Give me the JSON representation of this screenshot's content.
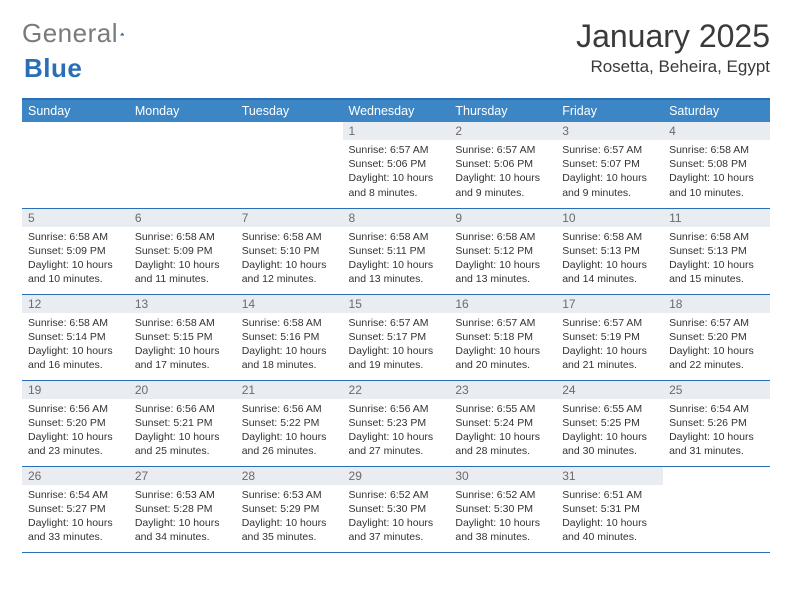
{
  "brand": {
    "part1": "General",
    "part2": "Blue"
  },
  "title": "January 2025",
  "location": "Rosetta, Beheira, Egypt",
  "colors": {
    "header_bg": "#3d86c6",
    "border": "#2a6fb5",
    "daynum_bg": "#e9edf1",
    "text": "#333333",
    "logo_gray": "#7a7a7a"
  },
  "layout": {
    "weeks": 5,
    "cols": 7
  },
  "day_headers": [
    "Sunday",
    "Monday",
    "Tuesday",
    "Wednesday",
    "Thursday",
    "Friday",
    "Saturday"
  ],
  "weeks": [
    [
      null,
      null,
      null,
      {
        "n": "1",
        "sr": "6:57 AM",
        "ss": "5:06 PM",
        "dl": "10 hours and 8 minutes."
      },
      {
        "n": "2",
        "sr": "6:57 AM",
        "ss": "5:06 PM",
        "dl": "10 hours and 9 minutes."
      },
      {
        "n": "3",
        "sr": "6:57 AM",
        "ss": "5:07 PM",
        "dl": "10 hours and 9 minutes."
      },
      {
        "n": "4",
        "sr": "6:58 AM",
        "ss": "5:08 PM",
        "dl": "10 hours and 10 minutes."
      }
    ],
    [
      {
        "n": "5",
        "sr": "6:58 AM",
        "ss": "5:09 PM",
        "dl": "10 hours and 10 minutes."
      },
      {
        "n": "6",
        "sr": "6:58 AM",
        "ss": "5:09 PM",
        "dl": "10 hours and 11 minutes."
      },
      {
        "n": "7",
        "sr": "6:58 AM",
        "ss": "5:10 PM",
        "dl": "10 hours and 12 minutes."
      },
      {
        "n": "8",
        "sr": "6:58 AM",
        "ss": "5:11 PM",
        "dl": "10 hours and 13 minutes."
      },
      {
        "n": "9",
        "sr": "6:58 AM",
        "ss": "5:12 PM",
        "dl": "10 hours and 13 minutes."
      },
      {
        "n": "10",
        "sr": "6:58 AM",
        "ss": "5:13 PM",
        "dl": "10 hours and 14 minutes."
      },
      {
        "n": "11",
        "sr": "6:58 AM",
        "ss": "5:13 PM",
        "dl": "10 hours and 15 minutes."
      }
    ],
    [
      {
        "n": "12",
        "sr": "6:58 AM",
        "ss": "5:14 PM",
        "dl": "10 hours and 16 minutes."
      },
      {
        "n": "13",
        "sr": "6:58 AM",
        "ss": "5:15 PM",
        "dl": "10 hours and 17 minutes."
      },
      {
        "n": "14",
        "sr": "6:58 AM",
        "ss": "5:16 PM",
        "dl": "10 hours and 18 minutes."
      },
      {
        "n": "15",
        "sr": "6:57 AM",
        "ss": "5:17 PM",
        "dl": "10 hours and 19 minutes."
      },
      {
        "n": "16",
        "sr": "6:57 AM",
        "ss": "5:18 PM",
        "dl": "10 hours and 20 minutes."
      },
      {
        "n": "17",
        "sr": "6:57 AM",
        "ss": "5:19 PM",
        "dl": "10 hours and 21 minutes."
      },
      {
        "n": "18",
        "sr": "6:57 AM",
        "ss": "5:20 PM",
        "dl": "10 hours and 22 minutes."
      }
    ],
    [
      {
        "n": "19",
        "sr": "6:56 AM",
        "ss": "5:20 PM",
        "dl": "10 hours and 23 minutes."
      },
      {
        "n": "20",
        "sr": "6:56 AM",
        "ss": "5:21 PM",
        "dl": "10 hours and 25 minutes."
      },
      {
        "n": "21",
        "sr": "6:56 AM",
        "ss": "5:22 PM",
        "dl": "10 hours and 26 minutes."
      },
      {
        "n": "22",
        "sr": "6:56 AM",
        "ss": "5:23 PM",
        "dl": "10 hours and 27 minutes."
      },
      {
        "n": "23",
        "sr": "6:55 AM",
        "ss": "5:24 PM",
        "dl": "10 hours and 28 minutes."
      },
      {
        "n": "24",
        "sr": "6:55 AM",
        "ss": "5:25 PM",
        "dl": "10 hours and 30 minutes."
      },
      {
        "n": "25",
        "sr": "6:54 AM",
        "ss": "5:26 PM",
        "dl": "10 hours and 31 minutes."
      }
    ],
    [
      {
        "n": "26",
        "sr": "6:54 AM",
        "ss": "5:27 PM",
        "dl": "10 hours and 33 minutes."
      },
      {
        "n": "27",
        "sr": "6:53 AM",
        "ss": "5:28 PM",
        "dl": "10 hours and 34 minutes."
      },
      {
        "n": "28",
        "sr": "6:53 AM",
        "ss": "5:29 PM",
        "dl": "10 hours and 35 minutes."
      },
      {
        "n": "29",
        "sr": "6:52 AM",
        "ss": "5:30 PM",
        "dl": "10 hours and 37 minutes."
      },
      {
        "n": "30",
        "sr": "6:52 AM",
        "ss": "5:30 PM",
        "dl": "10 hours and 38 minutes."
      },
      {
        "n": "31",
        "sr": "6:51 AM",
        "ss": "5:31 PM",
        "dl": "10 hours and 40 minutes."
      },
      null
    ]
  ],
  "labels": {
    "sunrise": "Sunrise: ",
    "sunset": "Sunset: ",
    "daylight": "Daylight: "
  }
}
